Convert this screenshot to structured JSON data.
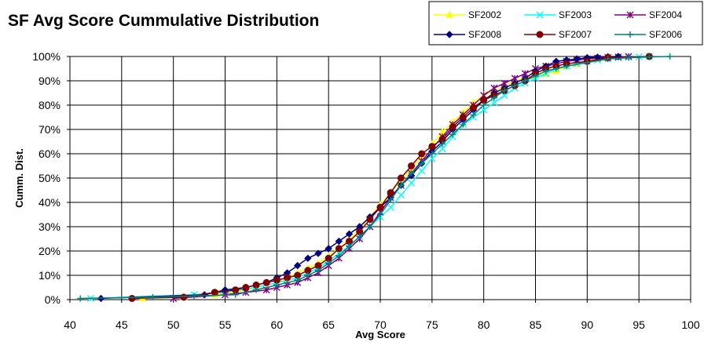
{
  "chart_data": {
    "type": "line",
    "title": "SF Avg Score Cummulative Distribution",
    "xlabel": "Avg Score",
    "ylabel": "Cumm. Dist.",
    "xlim": [
      40,
      100
    ],
    "ylim": [
      0,
      1
    ],
    "x_ticks": [
      "40",
      "45",
      "50",
      "55",
      "60",
      "65",
      "70",
      "75",
      "80",
      "85",
      "90",
      "95",
      "100"
    ],
    "y_ticks": [
      "0%",
      "10%",
      "20%",
      "30%",
      "40%",
      "50%",
      "60%",
      "70%",
      "80%",
      "90%",
      "100%"
    ],
    "grid": true,
    "legend": "top-right",
    "series": [
      {
        "name": "SF2002",
        "color": "#FFFF00",
        "marker": "triangle",
        "x": [
          47,
          51,
          54,
          56,
          58,
          60,
          61,
          62,
          63,
          64,
          65,
          66,
          67,
          68,
          69,
          70,
          71,
          72,
          73,
          74,
          75,
          76,
          77,
          78,
          79,
          80,
          81,
          82,
          83,
          84,
          85,
          86,
          87,
          88,
          89,
          90,
          91,
          92
        ],
        "y": [
          0.005,
          0.01,
          0.02,
          0.03,
          0.05,
          0.07,
          0.09,
          0.11,
          0.13,
          0.15,
          0.18,
          0.21,
          0.25,
          0.29,
          0.34,
          0.39,
          0.44,
          0.49,
          0.54,
          0.59,
          0.64,
          0.69,
          0.73,
          0.77,
          0.81,
          0.84,
          0.86,
          0.88,
          0.9,
          0.91,
          0.92,
          0.93,
          0.94,
          0.96,
          0.97,
          0.98,
          0.99,
          1.0
        ]
      },
      {
        "name": "SF2003",
        "color": "#00FFFF",
        "marker": "x",
        "x": [
          42,
          52,
          55,
          58,
          60,
          62,
          63,
          64,
          65,
          66,
          67,
          68,
          69,
          70,
          71,
          72,
          73,
          74,
          75,
          76,
          77,
          78,
          79,
          80,
          81,
          82,
          83,
          84,
          85,
          86,
          87,
          88,
          89,
          90,
          91,
          92,
          93,
          94,
          95,
          96
        ],
        "y": [
          0.005,
          0.02,
          0.03,
          0.05,
          0.07,
          0.09,
          0.11,
          0.13,
          0.16,
          0.19,
          0.22,
          0.26,
          0.3,
          0.34,
          0.38,
          0.43,
          0.48,
          0.53,
          0.58,
          0.62,
          0.67,
          0.72,
          0.75,
          0.78,
          0.81,
          0.84,
          0.87,
          0.89,
          0.91,
          0.93,
          0.95,
          0.96,
          0.97,
          0.98,
          0.985,
          0.99,
          0.995,
          0.997,
          0.999,
          1.0
        ]
      },
      {
        "name": "SF2004",
        "color": "#800080",
        "marker": "star",
        "x": [
          50,
          55,
          57,
          59,
          60,
          61,
          62,
          63,
          64,
          65,
          66,
          67,
          68,
          69,
          70,
          71,
          72,
          73,
          74,
          75,
          76,
          77,
          78,
          79,
          80,
          81,
          82,
          83,
          84,
          85,
          86,
          87,
          88,
          89,
          90,
          91,
          92,
          93,
          94
        ],
        "y": [
          0.005,
          0.02,
          0.03,
          0.04,
          0.05,
          0.06,
          0.07,
          0.09,
          0.11,
          0.14,
          0.17,
          0.21,
          0.25,
          0.3,
          0.36,
          0.42,
          0.47,
          0.52,
          0.57,
          0.62,
          0.67,
          0.72,
          0.76,
          0.8,
          0.84,
          0.87,
          0.89,
          0.91,
          0.93,
          0.95,
          0.96,
          0.97,
          0.98,
          0.985,
          0.99,
          0.993,
          0.996,
          0.998,
          1.0
        ]
      },
      {
        "name": "SF2008",
        "color": "#000080",
        "marker": "diamond",
        "x": [
          43,
          53,
          54,
          55,
          57,
          58,
          59,
          60,
          61,
          62,
          63,
          64,
          65,
          66,
          67,
          68,
          69,
          70,
          71,
          72,
          73,
          74,
          75,
          76,
          77,
          78,
          79,
          80,
          81,
          82,
          83,
          84,
          85,
          86,
          87,
          88,
          89,
          90,
          91,
          92,
          93
        ],
        "y": [
          0.005,
          0.02,
          0.03,
          0.04,
          0.05,
          0.06,
          0.07,
          0.09,
          0.11,
          0.14,
          0.17,
          0.19,
          0.21,
          0.24,
          0.27,
          0.3,
          0.34,
          0.38,
          0.42,
          0.47,
          0.51,
          0.56,
          0.61,
          0.65,
          0.7,
          0.74,
          0.78,
          0.82,
          0.85,
          0.87,
          0.89,
          0.91,
          0.94,
          0.96,
          0.98,
          0.985,
          0.99,
          0.995,
          0.997,
          0.999,
          1.0
        ]
      },
      {
        "name": "SF2007",
        "color": "#800000",
        "marker": "circle",
        "x": [
          46,
          51,
          54,
          56,
          57,
          58,
          59,
          60,
          61,
          62,
          63,
          64,
          65,
          66,
          67,
          68,
          69,
          70,
          71,
          72,
          73,
          74,
          75,
          76,
          77,
          78,
          79,
          80,
          81,
          82,
          83,
          84,
          85,
          86,
          87,
          88,
          90,
          92,
          96
        ],
        "y": [
          0.005,
          0.01,
          0.03,
          0.04,
          0.05,
          0.06,
          0.07,
          0.08,
          0.09,
          0.1,
          0.12,
          0.14,
          0.17,
          0.21,
          0.24,
          0.28,
          0.33,
          0.38,
          0.44,
          0.5,
          0.55,
          0.6,
          0.63,
          0.66,
          0.71,
          0.75,
          0.79,
          0.82,
          0.84,
          0.86,
          0.88,
          0.9,
          0.93,
          0.95,
          0.96,
          0.97,
          0.98,
          0.995,
          1.0
        ]
      },
      {
        "name": "SF2006",
        "color": "#008080",
        "marker": "plus",
        "x": [
          41,
          48,
          52,
          56,
          58,
          60,
          61,
          62,
          63,
          64,
          65,
          66,
          67,
          68,
          69,
          70,
          71,
          72,
          73,
          74,
          75,
          76,
          77,
          78,
          79,
          80,
          81,
          82,
          83,
          84,
          85,
          86,
          87,
          88,
          90,
          92,
          94,
          96,
          98
        ],
        "y": [
          0.005,
          0.01,
          0.015,
          0.02,
          0.04,
          0.06,
          0.07,
          0.08,
          0.1,
          0.12,
          0.15,
          0.18,
          0.22,
          0.26,
          0.3,
          0.35,
          0.41,
          0.47,
          0.52,
          0.56,
          0.6,
          0.64,
          0.68,
          0.72,
          0.76,
          0.8,
          0.83,
          0.86,
          0.88,
          0.9,
          0.92,
          0.94,
          0.95,
          0.96,
          0.975,
          0.99,
          0.995,
          0.998,
          1.0
        ]
      }
    ]
  }
}
